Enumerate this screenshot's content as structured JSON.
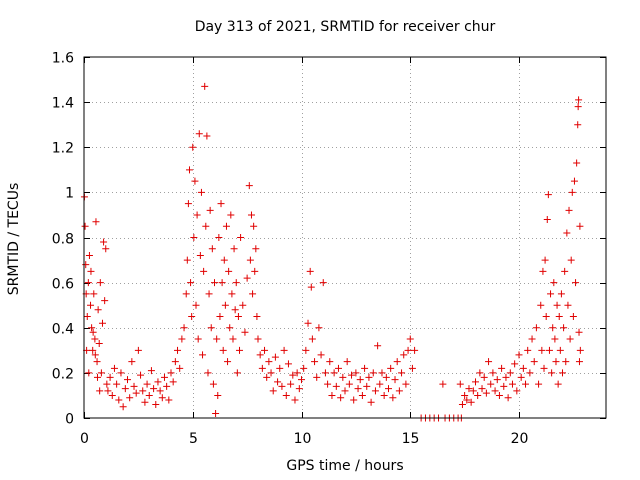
{
  "chart_data": {
    "type": "scatter",
    "title": "Day 313 of 2021, SRMTID for receiver chur",
    "xlabel": "GPS time / hours",
    "ylabel": "SRMTID / TECUs",
    "xlim": [
      0,
      24
    ],
    "ylim": [
      0,
      1.6
    ],
    "x_ticks": [
      0,
      5,
      10,
      15,
      20
    ],
    "x_tick_labels": [
      "0",
      "5",
      "10",
      "15",
      "20"
    ],
    "y_ticks": [
      0,
      0.2,
      0.4,
      0.6,
      0.8,
      1,
      1.2,
      1.4,
      1.6
    ],
    "y_tick_labels": [
      "0",
      "0.2",
      "0.4",
      "0.6",
      "0.8",
      "1",
      "1.2",
      "1.4",
      "1.6"
    ],
    "grid": true,
    "marker": "plus",
    "color": "#e00000",
    "series": [
      {
        "name": "SRMTID",
        "points": [
          [
            0.02,
            0.98
          ],
          [
            0.05,
            0.85
          ],
          [
            0.08,
            0.68
          ],
          [
            0.1,
            0.55
          ],
          [
            0.15,
            0.45
          ],
          [
            0.2,
            0.6
          ],
          [
            0.25,
            0.72
          ],
          [
            0.3,
            0.5
          ],
          [
            0.35,
            0.4
          ],
          [
            0.4,
            0.3
          ],
          [
            0.45,
            0.55
          ],
          [
            0.5,
            0.35
          ],
          [
            0.55,
            0.87
          ],
          [
            0.6,
            0.25
          ],
          [
            0.65,
            0.48
          ],
          [
            0.7,
            0.33
          ],
          [
            0.75,
            0.6
          ],
          [
            0.8,
            0.2
          ],
          [
            0.85,
            0.42
          ],
          [
            0.9,
            0.78
          ],
          [
            0.95,
            0.52
          ],
          [
            1.0,
            0.75
          ],
          [
            1.05,
            0.15
          ],
          [
            0.12,
            0.3
          ],
          [
            0.22,
            0.2
          ],
          [
            0.32,
            0.65
          ],
          [
            0.42,
            0.38
          ],
          [
            0.52,
            0.28
          ],
          [
            0.62,
            0.18
          ],
          [
            0.72,
            0.12
          ],
          [
            1.1,
            0.12
          ],
          [
            1.2,
            0.18
          ],
          [
            1.3,
            0.1
          ],
          [
            1.4,
            0.22
          ],
          [
            1.5,
            0.15
          ],
          [
            1.6,
            0.08
          ],
          [
            1.7,
            0.2
          ],
          [
            1.8,
            0.05
          ],
          [
            1.9,
            0.13
          ],
          [
            2.0,
            0.17
          ],
          [
            2.1,
            0.09
          ],
          [
            2.2,
            0.25
          ],
          [
            2.3,
            0.14
          ],
          [
            2.4,
            0.11
          ],
          [
            2.5,
            0.3
          ],
          [
            2.6,
            0.19
          ],
          [
            2.7,
            0.12
          ],
          [
            2.8,
            0.07
          ],
          [
            2.9,
            0.15
          ],
          [
            3.0,
            0.1
          ],
          [
            3.1,
            0.21
          ],
          [
            3.2,
            0.13
          ],
          [
            3.3,
            0.06
          ],
          [
            3.4,
            0.16
          ],
          [
            3.5,
            0.12
          ],
          [
            3.6,
            0.09
          ],
          [
            3.7,
            0.18
          ],
          [
            3.8,
            0.14
          ],
          [
            3.9,
            0.08
          ],
          [
            4.0,
            0.2
          ],
          [
            4.1,
            0.16
          ],
          [
            4.2,
            0.25
          ],
          [
            4.3,
            0.3
          ],
          [
            4.4,
            0.22
          ],
          [
            4.5,
            0.35
          ],
          [
            4.6,
            0.4
          ],
          [
            4.7,
            0.55
          ],
          [
            4.75,
            0.7
          ],
          [
            4.8,
            0.95
          ],
          [
            4.85,
            1.1
          ],
          [
            4.9,
            0.6
          ],
          [
            4.95,
            0.45
          ],
          [
            5.0,
            1.2
          ],
          [
            5.05,
            0.8
          ],
          [
            5.1,
            1.05
          ],
          [
            5.15,
            0.5
          ],
          [
            5.2,
            0.9
          ],
          [
            5.25,
            0.35
          ],
          [
            5.3,
            1.26
          ],
          [
            5.35,
            0.72
          ],
          [
            5.4,
            1.0
          ],
          [
            5.45,
            0.28
          ],
          [
            5.5,
            0.65
          ],
          [
            5.55,
            1.47
          ],
          [
            5.6,
            0.85
          ],
          [
            5.65,
            1.25
          ],
          [
            5.7,
            0.2
          ],
          [
            5.75,
            0.55
          ],
          [
            5.8,
            0.92
          ],
          [
            5.85,
            0.4
          ],
          [
            5.9,
            0.75
          ],
          [
            5.95,
            0.15
          ],
          [
            6.0,
            0.6
          ],
          [
            6.05,
            0.02
          ],
          [
            6.1,
            0.35
          ],
          [
            6.15,
            0.1
          ],
          [
            6.2,
            0.8
          ],
          [
            6.25,
            0.45
          ],
          [
            6.3,
            0.95
          ],
          [
            6.35,
            0.6
          ],
          [
            6.4,
            0.3
          ],
          [
            6.45,
            0.7
          ],
          [
            6.5,
            0.5
          ],
          [
            6.55,
            0.85
          ],
          [
            6.6,
            0.25
          ],
          [
            6.65,
            0.65
          ],
          [
            6.7,
            0.4
          ],
          [
            6.75,
            0.9
          ],
          [
            6.8,
            0.55
          ],
          [
            6.85,
            0.35
          ],
          [
            6.9,
            0.75
          ],
          [
            6.95,
            0.48
          ],
          [
            7.0,
            0.6
          ],
          [
            7.05,
            0.2
          ],
          [
            7.1,
            0.45
          ],
          [
            7.15,
            0.3
          ],
          [
            7.2,
            0.8
          ],
          [
            7.3,
            0.5
          ],
          [
            7.4,
            0.38
          ],
          [
            7.5,
            0.62
          ],
          [
            7.6,
            1.03
          ],
          [
            7.65,
            0.7
          ],
          [
            7.7,
            0.9
          ],
          [
            7.75,
            0.55
          ],
          [
            7.8,
            0.85
          ],
          [
            7.85,
            0.65
          ],
          [
            7.9,
            0.75
          ],
          [
            7.95,
            0.45
          ],
          [
            8.0,
            0.35
          ],
          [
            8.1,
            0.28
          ],
          [
            8.2,
            0.22
          ],
          [
            8.3,
            0.3
          ],
          [
            8.4,
            0.18
          ],
          [
            8.5,
            0.25
          ],
          [
            8.6,
            0.2
          ],
          [
            8.7,
            0.12
          ],
          [
            8.8,
            0.27
          ],
          [
            8.9,
            0.16
          ],
          [
            9.0,
            0.22
          ],
          [
            9.1,
            0.14
          ],
          [
            9.2,
            0.3
          ],
          [
            9.3,
            0.1
          ],
          [
            9.4,
            0.24
          ],
          [
            9.5,
            0.15
          ],
          [
            9.6,
            0.19
          ],
          [
            9.7,
            0.08
          ],
          [
            9.8,
            0.2
          ],
          [
            9.9,
            0.13
          ],
          [
            10.0,
            0.17
          ],
          [
            10.1,
            0.22
          ],
          [
            10.2,
            0.3
          ],
          [
            10.3,
            0.42
          ],
          [
            10.4,
            0.65
          ],
          [
            10.45,
            0.58
          ],
          [
            10.5,
            0.35
          ],
          [
            10.6,
            0.25
          ],
          [
            10.7,
            0.18
          ],
          [
            10.8,
            0.4
          ],
          [
            10.9,
            0.28
          ],
          [
            11.0,
            0.6
          ],
          [
            11.1,
            0.2
          ],
          [
            11.2,
            0.15
          ],
          [
            11.3,
            0.25
          ],
          [
            11.4,
            0.1
          ],
          [
            11.5,
            0.2
          ],
          [
            11.6,
            0.14
          ],
          [
            11.7,
            0.22
          ],
          [
            11.8,
            0.09
          ],
          [
            11.9,
            0.18
          ],
          [
            12.0,
            0.12
          ],
          [
            12.1,
            0.25
          ],
          [
            12.2,
            0.15
          ],
          [
            12.3,
            0.19
          ],
          [
            12.4,
            0.08
          ],
          [
            12.5,
            0.2
          ],
          [
            12.6,
            0.13
          ],
          [
            12.7,
            0.17
          ],
          [
            12.8,
            0.1
          ],
          [
            12.9,
            0.22
          ],
          [
            13.0,
            0.14
          ],
          [
            13.1,
            0.18
          ],
          [
            13.2,
            0.07
          ],
          [
            13.3,
            0.2
          ],
          [
            13.4,
            0.12
          ],
          [
            13.5,
            0.32
          ],
          [
            13.6,
            0.15
          ],
          [
            13.7,
            0.2
          ],
          [
            13.8,
            0.1
          ],
          [
            13.9,
            0.18
          ],
          [
            14.0,
            0.13
          ],
          [
            14.1,
            0.22
          ],
          [
            14.2,
            0.09
          ],
          [
            14.3,
            0.17
          ],
          [
            14.4,
            0.25
          ],
          [
            14.5,
            0.12
          ],
          [
            14.6,
            0.2
          ],
          [
            14.7,
            0.28
          ],
          [
            14.8,
            0.15
          ],
          [
            14.9,
            0.3
          ],
          [
            15.0,
            0.35
          ],
          [
            15.1,
            0.22
          ],
          [
            15.2,
            0.3
          ],
          [
            15.5,
            0.0
          ],
          [
            15.7,
            0.0
          ],
          [
            15.9,
            0.0
          ],
          [
            16.1,
            0.0
          ],
          [
            16.3,
            0.0
          ],
          [
            16.5,
            0.15
          ],
          [
            16.6,
            0.0
          ],
          [
            16.8,
            0.0
          ],
          [
            17.0,
            0.0
          ],
          [
            17.2,
            0.0
          ],
          [
            17.3,
            0.15
          ],
          [
            17.35,
            0.0
          ],
          [
            17.4,
            0.06
          ],
          [
            17.5,
            0.1
          ],
          [
            17.6,
            0.08
          ],
          [
            17.7,
            0.13
          ],
          [
            17.8,
            0.07
          ],
          [
            17.9,
            0.12
          ],
          [
            18.0,
            0.16
          ],
          [
            18.1,
            0.1
          ],
          [
            18.2,
            0.2
          ],
          [
            18.3,
            0.13
          ],
          [
            18.4,
            0.18
          ],
          [
            18.5,
            0.11
          ],
          [
            18.6,
            0.25
          ],
          [
            18.7,
            0.15
          ],
          [
            18.8,
            0.2
          ],
          [
            18.9,
            0.12
          ],
          [
            19.0,
            0.17
          ],
          [
            19.1,
            0.1
          ],
          [
            19.2,
            0.22
          ],
          [
            19.3,
            0.14
          ],
          [
            19.4,
            0.18
          ],
          [
            19.5,
            0.09
          ],
          [
            19.6,
            0.2
          ],
          [
            19.7,
            0.15
          ],
          [
            19.8,
            0.24
          ],
          [
            19.9,
            0.12
          ],
          [
            20.0,
            0.28
          ],
          [
            20.1,
            0.18
          ],
          [
            20.2,
            0.22
          ],
          [
            20.3,
            0.15
          ],
          [
            20.4,
            0.3
          ],
          [
            20.5,
            0.2
          ],
          [
            20.6,
            0.35
          ],
          [
            20.7,
            0.25
          ],
          [
            20.8,
            0.4
          ],
          [
            20.9,
            0.15
          ],
          [
            21.0,
            0.5
          ],
          [
            21.05,
            0.3
          ],
          [
            21.1,
            0.65
          ],
          [
            21.15,
            0.22
          ],
          [
            21.2,
            0.7
          ],
          [
            21.25,
            0.45
          ],
          [
            21.3,
            0.88
          ],
          [
            21.35,
            0.99
          ],
          [
            21.4,
            0.3
          ],
          [
            21.45,
            0.55
          ],
          [
            21.5,
            0.2
          ],
          [
            21.55,
            0.4
          ],
          [
            21.6,
            0.6
          ],
          [
            21.65,
            0.35
          ],
          [
            21.7,
            0.25
          ],
          [
            21.75,
            0.5
          ],
          [
            21.8,
            0.15
          ],
          [
            21.85,
            0.45
          ],
          [
            21.9,
            0.3
          ],
          [
            21.95,
            0.55
          ],
          [
            22.0,
            0.2
          ],
          [
            22.05,
            0.4
          ],
          [
            22.1,
            0.65
          ],
          [
            22.15,
            0.25
          ],
          [
            22.2,
            0.82
          ],
          [
            22.25,
            0.5
          ],
          [
            22.3,
            0.92
          ],
          [
            22.35,
            0.35
          ],
          [
            22.4,
            0.7
          ],
          [
            22.45,
            1.0
          ],
          [
            22.5,
            0.45
          ],
          [
            22.55,
            1.05
          ],
          [
            22.6,
            0.6
          ],
          [
            22.65,
            1.13
          ],
          [
            22.7,
            1.3
          ],
          [
            22.72,
            1.38
          ],
          [
            22.74,
            1.41
          ],
          [
            22.76,
            0.38
          ],
          [
            22.78,
            0.25
          ],
          [
            22.8,
            0.85
          ],
          [
            22.82,
            0.3
          ]
        ]
      }
    ]
  }
}
